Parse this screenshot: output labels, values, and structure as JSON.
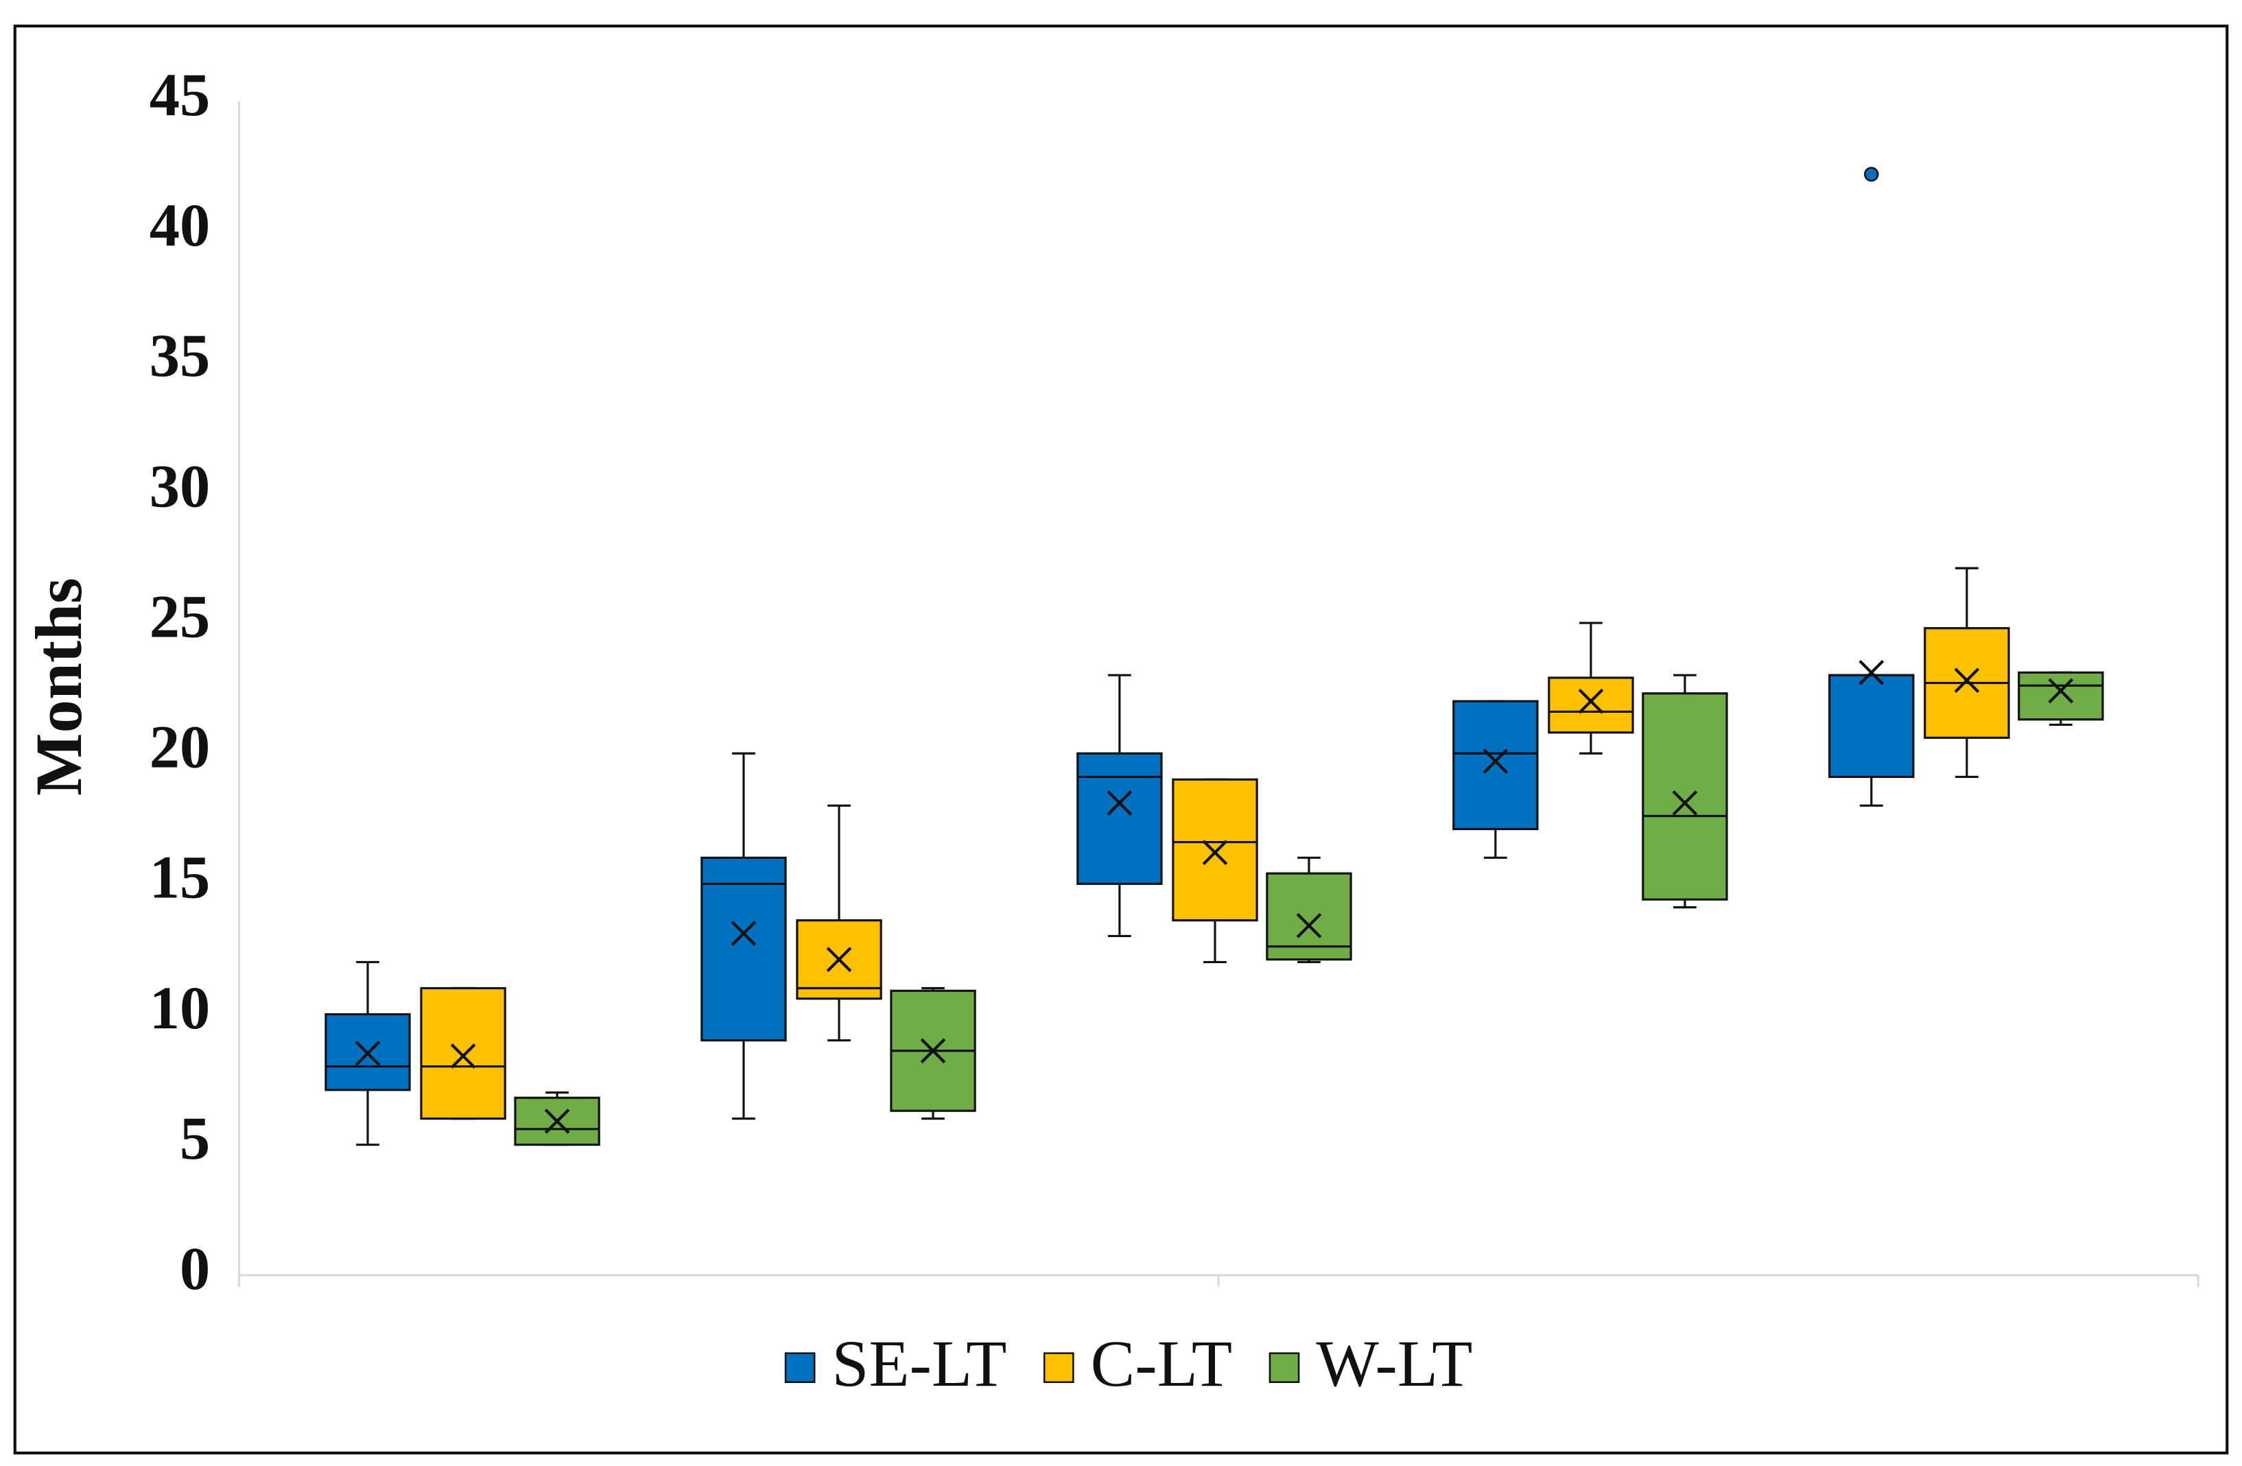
{
  "chart_data": {
    "type": "box",
    "y_label": "Months",
    "categories": [
      null,
      null,
      null,
      null,
      null
    ],
    "ylim": [
      0,
      45
    ],
    "yticks": [
      0,
      5,
      10,
      15,
      20,
      25,
      30,
      35,
      40,
      45
    ],
    "grid": false,
    "legend": "bottom",
    "series": [
      {
        "name": "SE-LT",
        "color": "#0070c0",
        "boxes": [
          {
            "min": 5,
            "q1": 7.1,
            "median": 8,
            "q3": 10,
            "max": 12,
            "mean": 8.5
          },
          {
            "min": 6,
            "q1": 9,
            "median": 15,
            "q3": 16,
            "max": 20,
            "mean": 13.1
          },
          {
            "min": 13,
            "q1": 15,
            "median": 19.1,
            "q3": 20,
            "max": 23,
            "mean": 18.1
          },
          {
            "min": 16,
            "q1": 17.1,
            "median": 20,
            "q3": 22,
            "max": 22,
            "mean": 19.7
          },
          {
            "min": 18,
            "q1": 19.1,
            "median": 23,
            "q3": 23,
            "max": 23,
            "mean": 23.1,
            "outliers": [
              42.2
            ]
          }
        ]
      },
      {
        "name": "C-LT",
        "color": "#ffc000",
        "boxes": [
          {
            "min": 6,
            "q1": 6,
            "median": 8,
            "q3": 11,
            "max": 11,
            "mean": 8.4
          },
          {
            "min": 9,
            "q1": 10.6,
            "median": 11,
            "q3": 13.6,
            "max": 18,
            "mean": 12.1
          },
          {
            "min": 12,
            "q1": 13.6,
            "median": 16.6,
            "q3": 19,
            "max": 19,
            "mean": 16.2
          },
          {
            "min": 20,
            "q1": 20.8,
            "median": 21.6,
            "q3": 22.9,
            "max": 25,
            "mean": 22
          },
          {
            "min": 19.1,
            "q1": 20.6,
            "median": 22.7,
            "q3": 24.8,
            "max": 27.1,
            "mean": 22.8
          }
        ]
      },
      {
        "name": "W-LT",
        "color": "#70ad47",
        "boxes": [
          {
            "min": 5,
            "q1": 5,
            "median": 5.6,
            "q3": 6.8,
            "max": 7,
            "mean": 5.9
          },
          {
            "min": 6,
            "q1": 6.3,
            "median": 8.6,
            "q3": 10.9,
            "max": 11,
            "mean": 8.6
          },
          {
            "min": 12,
            "q1": 12.1,
            "median": 12.6,
            "q3": 15.4,
            "max": 16,
            "mean": 13.4
          },
          {
            "min": 14.1,
            "q1": 14.4,
            "median": 17.6,
            "q3": 22.3,
            "max": 23,
            "mean": 18.1
          },
          {
            "min": 21.1,
            "q1": 21.3,
            "median": 22.6,
            "q3": 23.1,
            "max": 23.1,
            "mean": 22.4
          }
        ]
      }
    ]
  }
}
